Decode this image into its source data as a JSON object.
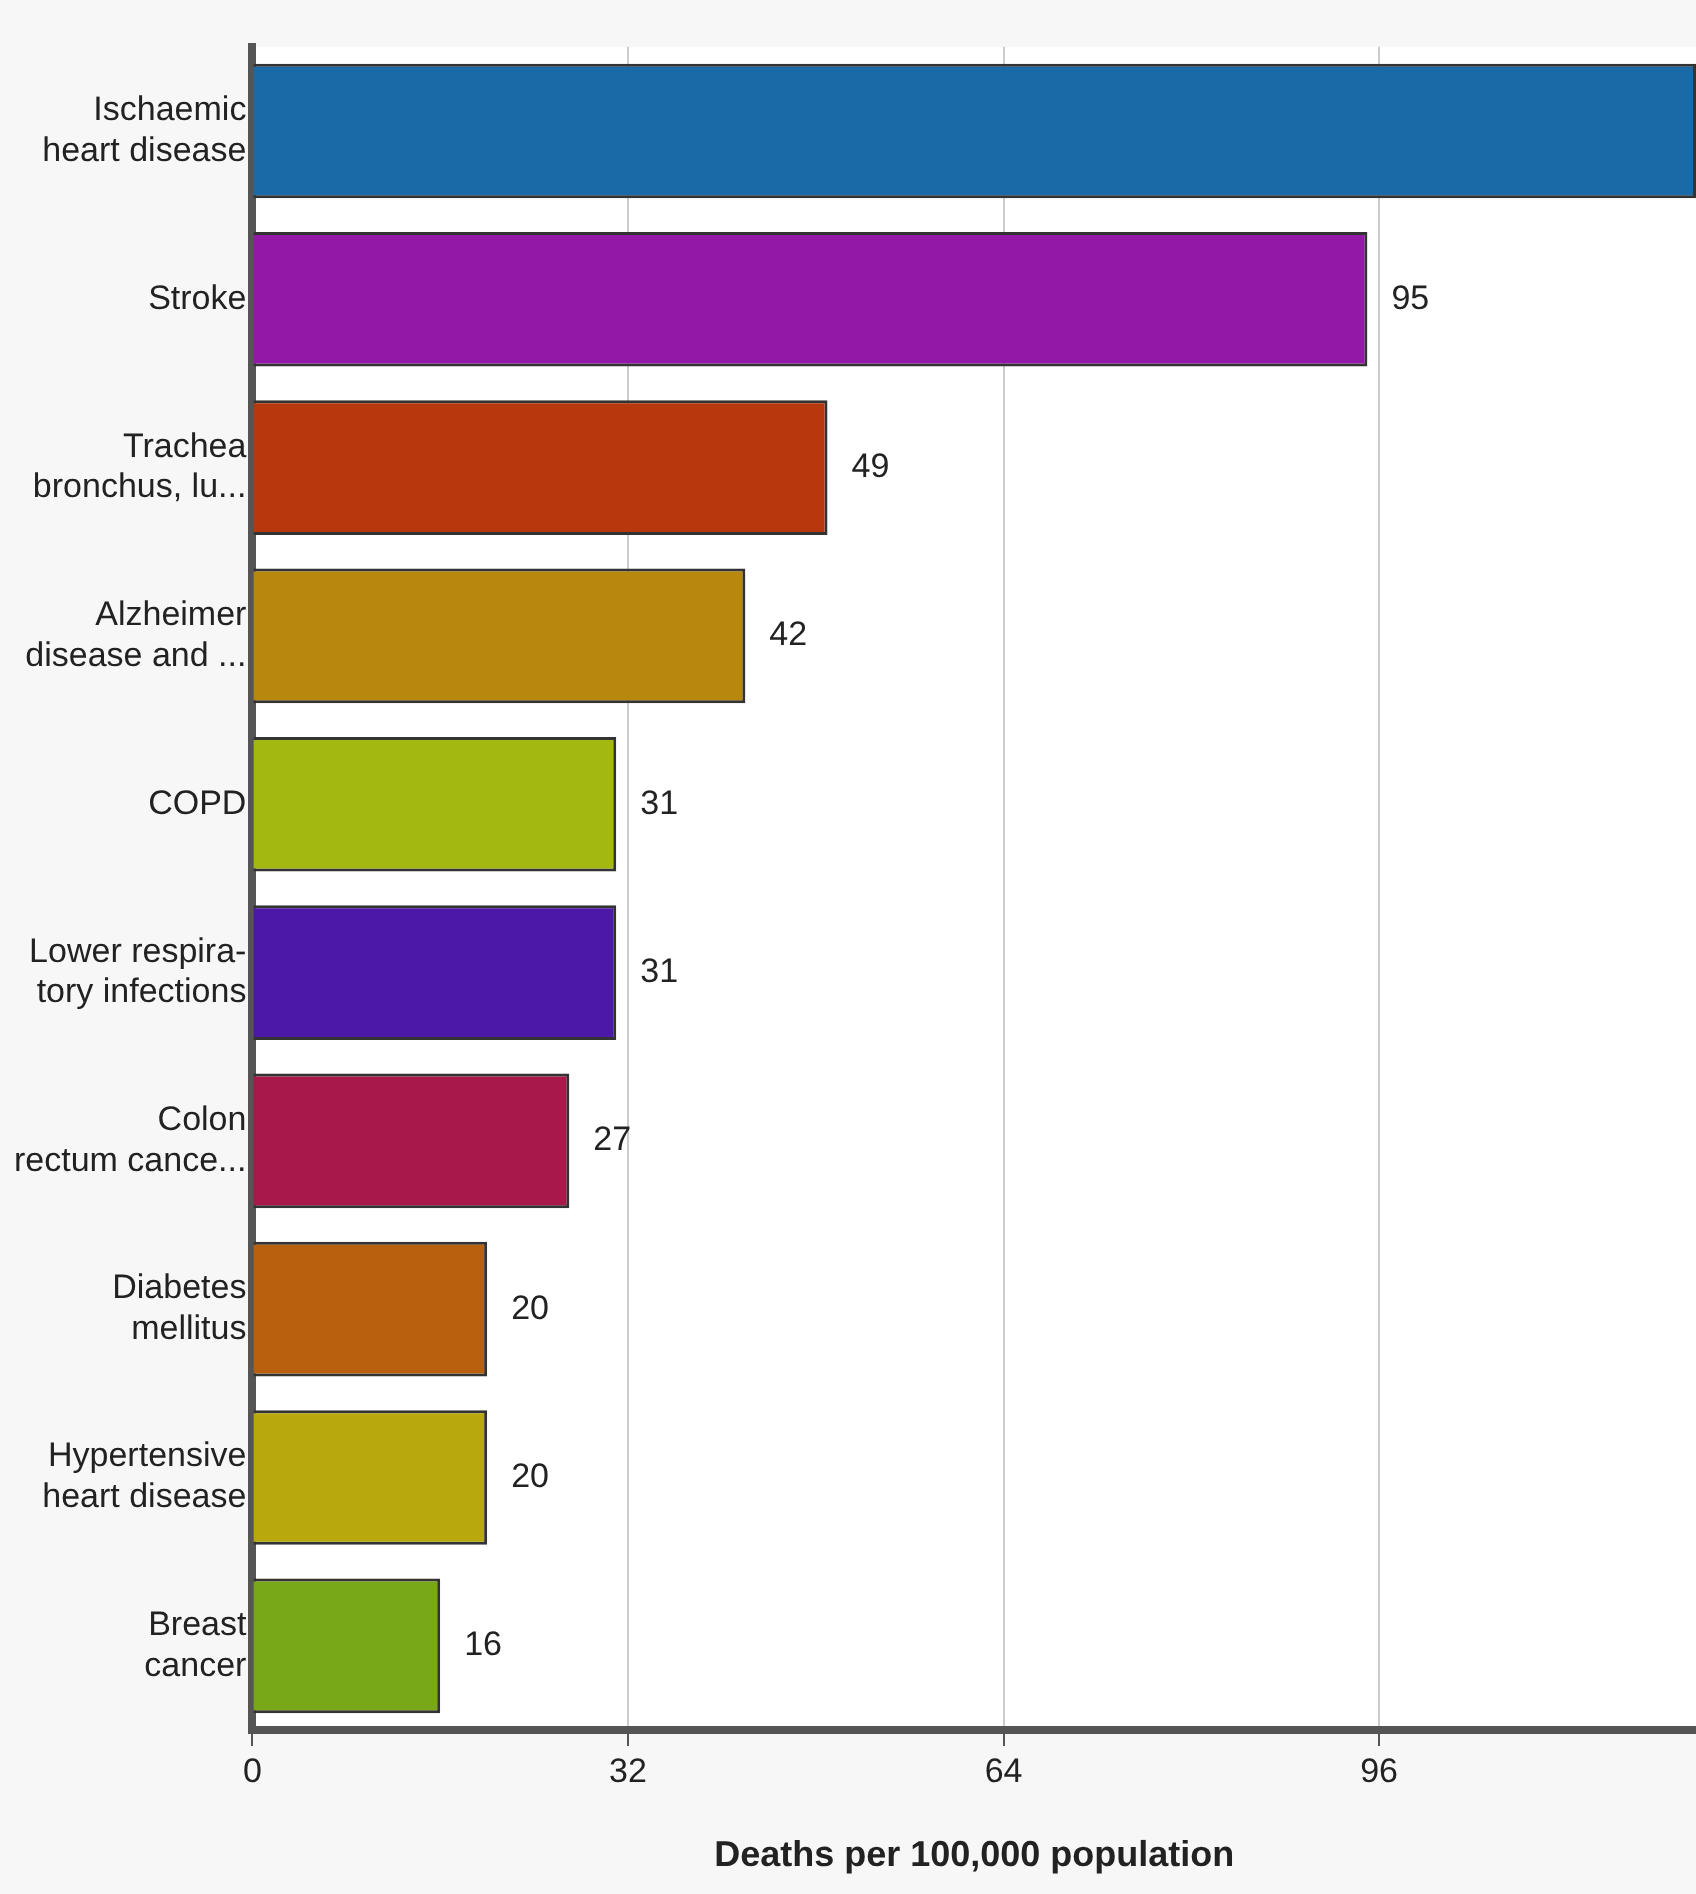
{
  "chart_data": {
    "type": "bar",
    "orientation": "horizontal",
    "xlabel": "Deaths per 100,000 population",
    "categories": [
      "Ischaemic\nheart disease",
      "Stroke",
      "Trachea\nbronchus, lu...",
      "Alzheimer\ndisease and ...",
      "COPD",
      "Lower respira-\ntory infections",
      "Colon\nrectum cance...",
      "Diabetes\nmellitus",
      "Hypertensive\nheart disease",
      "Breast\ncancer"
    ],
    "values": [
      123,
      95,
      49,
      42,
      31,
      31,
      27,
      20,
      20,
      16
    ],
    "value_labels": [
      null,
      "95",
      "49",
      "42",
      "31",
      "31",
      "27",
      "20",
      "20",
      "16"
    ],
    "colors": [
      "#1a6aa8",
      "#9418a8",
      "#b8380e",
      "#b8870e",
      "#a4b812",
      "#4b18a8",
      "#a8184a",
      "#b8600e",
      "#b8a80e",
      "#78a818"
    ],
    "xlim": [
      0,
      123
    ],
    "xticks": [
      0,
      32,
      64,
      96
    ],
    "grid": "x",
    "legend": false
  }
}
